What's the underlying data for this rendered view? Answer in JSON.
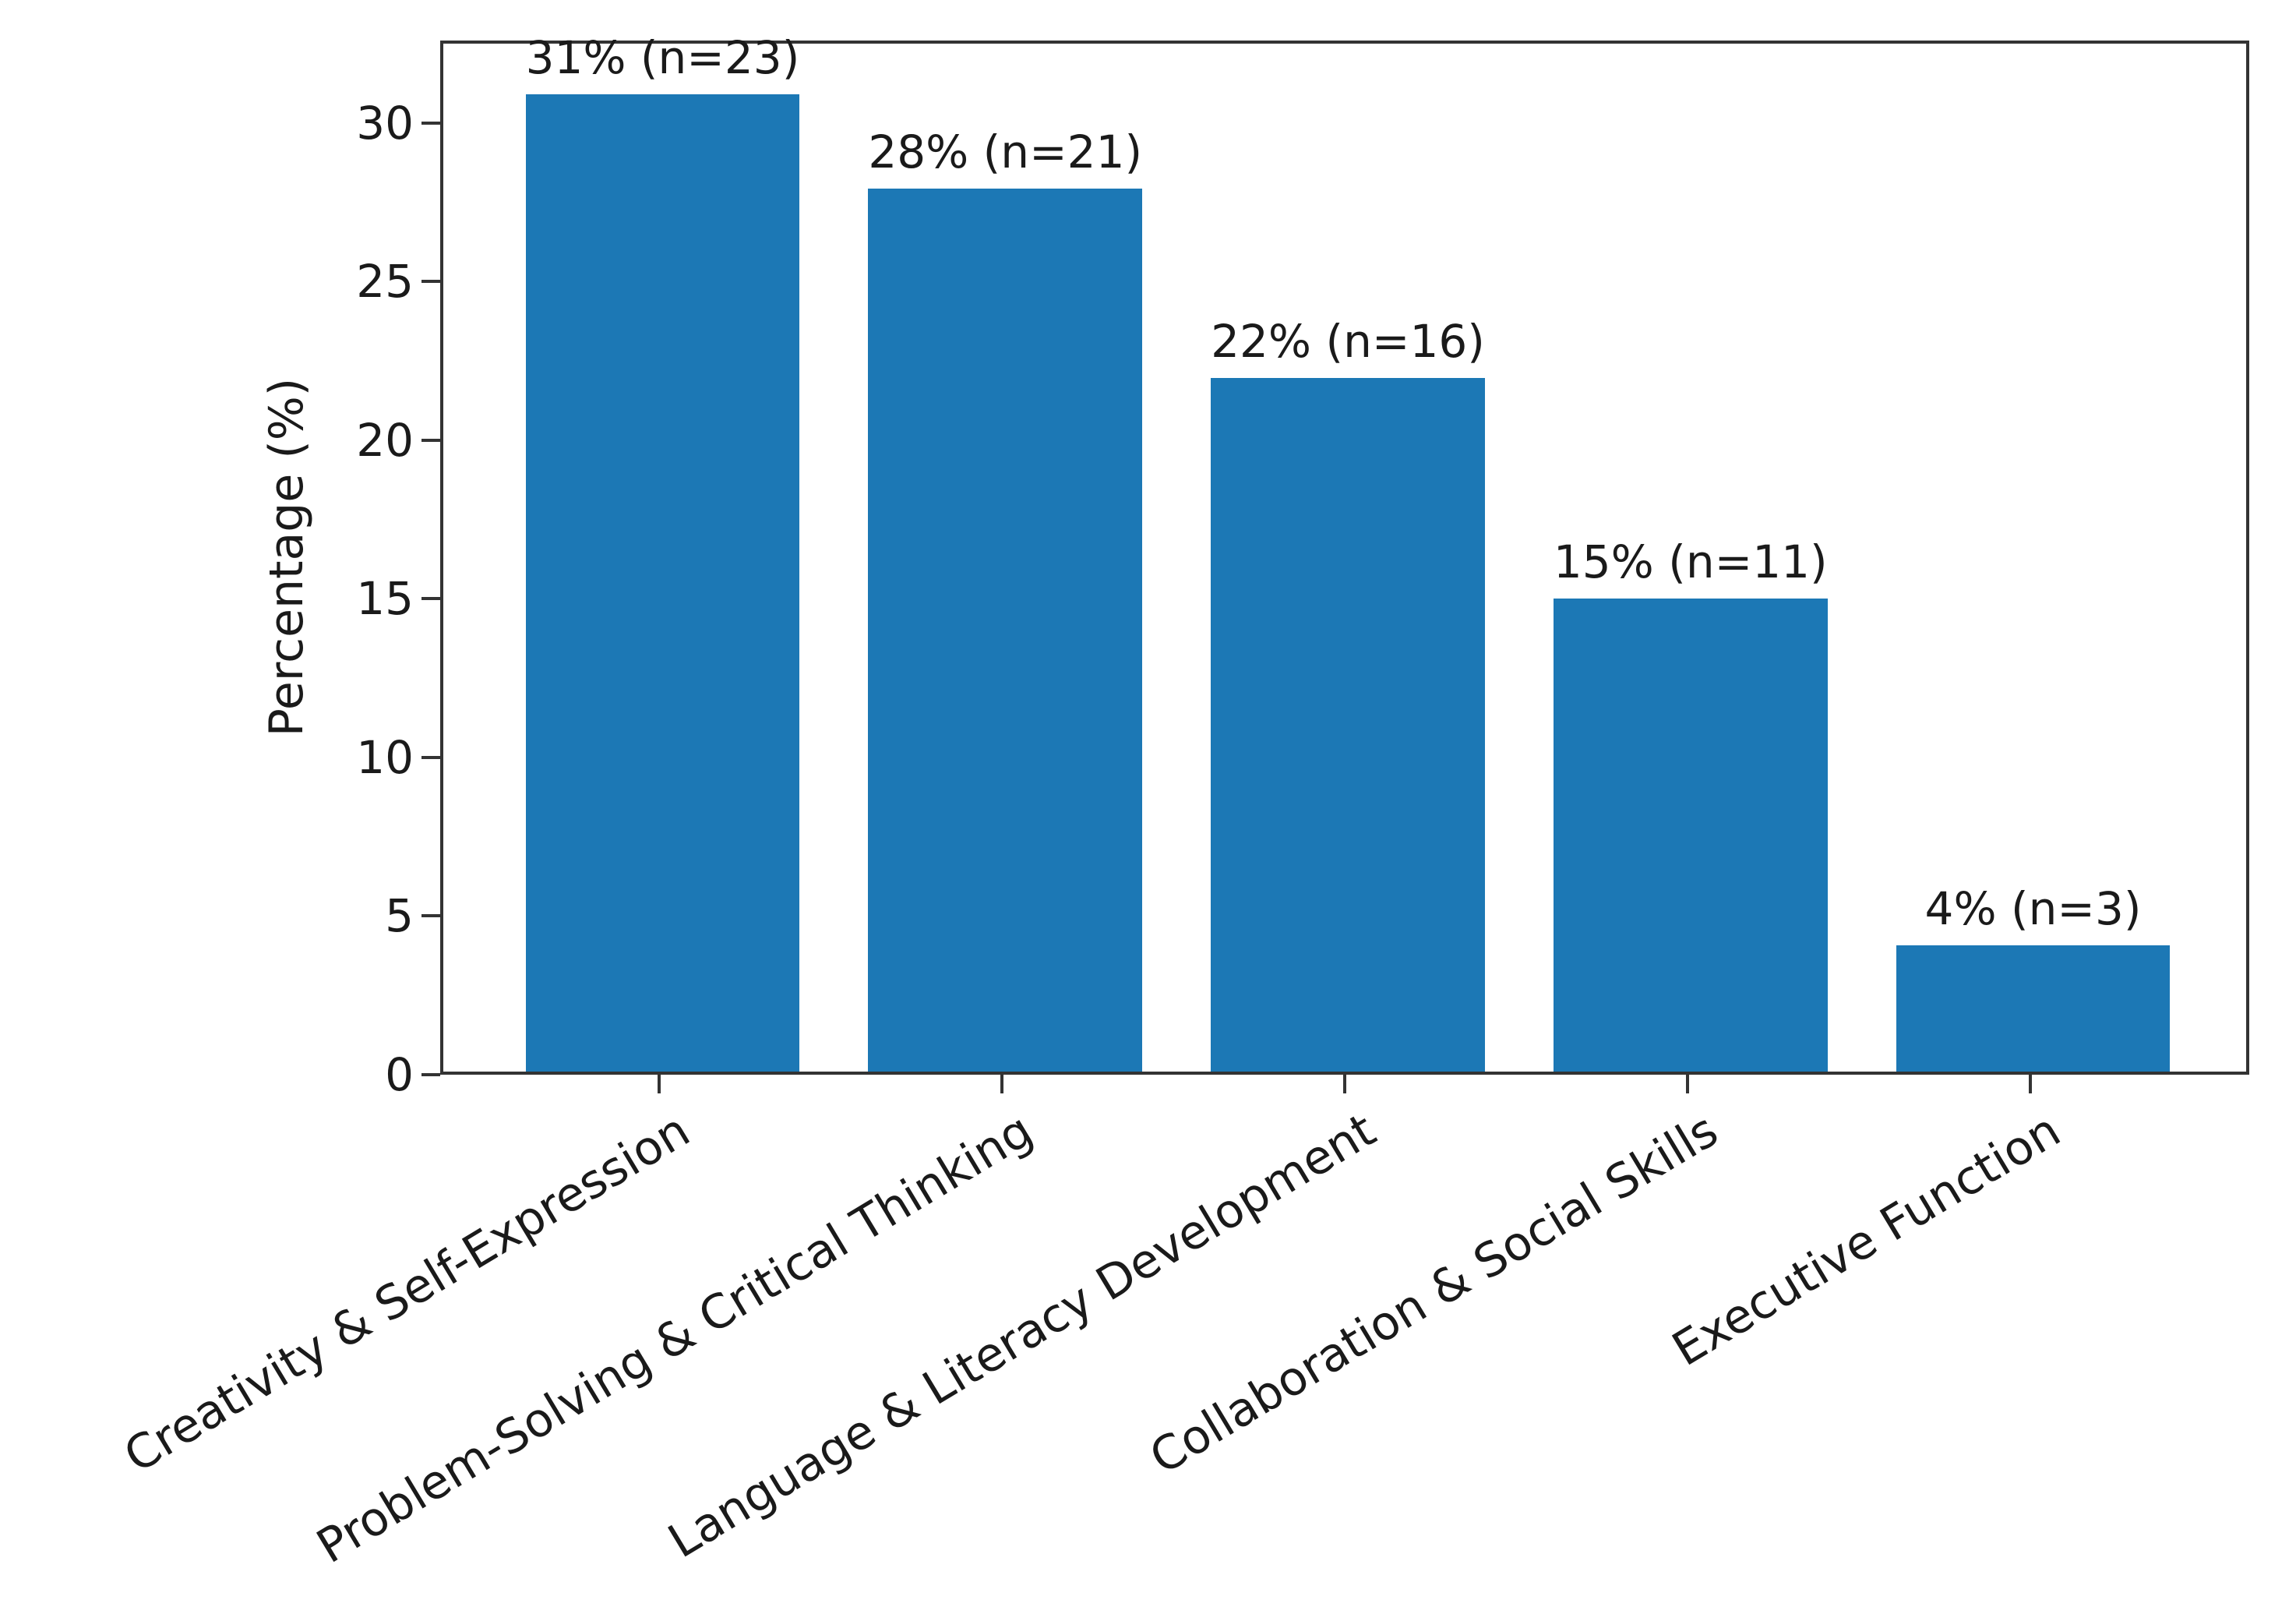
{
  "chart_data": {
    "type": "bar",
    "title": "",
    "xlabel": "",
    "ylabel": "Percentage (%)",
    "categories": [
      "Creativity & Self-Expression",
      "Problem-Solving & Critical Thinking",
      "Language & Literacy Development",
      "Collaboration & Social Skills",
      "Executive Function"
    ],
    "values": [
      31,
      28,
      22,
      15,
      4
    ],
    "counts": [
      23,
      21,
      16,
      11,
      3
    ],
    "bar_labels": [
      "31% (n=23)",
      "28% (n=21)",
      "22% (n=16)",
      "15% (n=11)",
      "4% (n=3)"
    ],
    "y_ticks": [
      0,
      5,
      10,
      15,
      20,
      25,
      30
    ],
    "ylim": [
      0,
      32.6
    ],
    "grid": false,
    "legend_position": "none",
    "x_label_rotation_deg": 31,
    "bar_color": "#1c78b5",
    "axis_color": "#333333",
    "text_color": "#1a1a1a",
    "background_color": "#ffffff"
  }
}
